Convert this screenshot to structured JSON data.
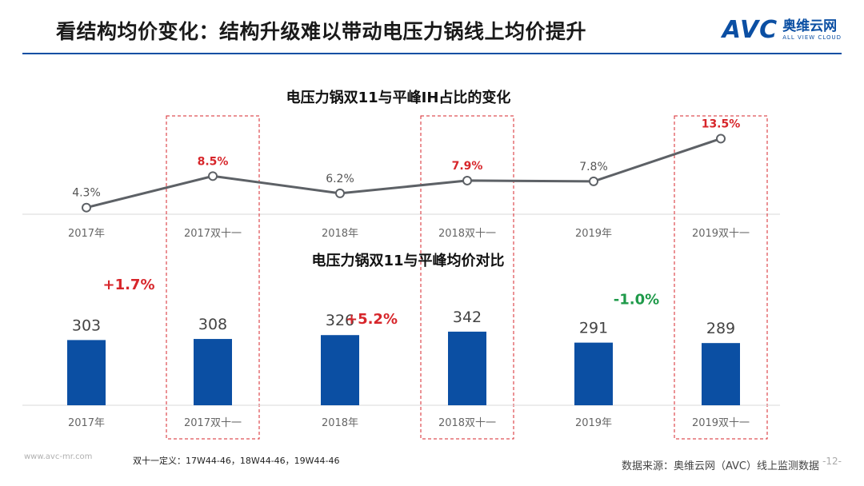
{
  "page": {
    "title": "看结构均价变化：结构升级难以带动电压力锅线上均价提升",
    "brand_mark": "AVC",
    "brand_cn": "奥维云网",
    "brand_en": "ALL VIEW CLOUD",
    "footer_url": "www.avc-mr.com",
    "footnote": "双十一定义：17W44-46，18W44-46，19W44-46",
    "source": "数据来源：奥维云网（AVC）线上监测数据",
    "page_number": "-12-"
  },
  "colors": {
    "title_rule": "#0b4fa3",
    "bar": "#0b4fa3",
    "line": "#5d6166",
    "highlight_red": "#d7262b",
    "highlight_green": "#1f9a4a",
    "label_gray": "#555555"
  },
  "chart_data": [
    {
      "type": "line",
      "title": "电压力锅双11与平峰IH占比的变化",
      "categories": [
        "2017年",
        "2017双十一",
        "2018年",
        "2018双十一",
        "2019年",
        "2019双十一"
      ],
      "values": [
        4.3,
        8.5,
        6.2,
        7.9,
        7.8,
        13.5
      ],
      "value_labels": [
        "4.3%",
        "8.5%",
        "6.2%",
        "7.9%",
        "7.8%",
        "13.5%"
      ],
      "highlighted": [
        false,
        true,
        false,
        true,
        false,
        true
      ],
      "unit": "%",
      "ylim": [
        0,
        16
      ],
      "grid": false
    },
    {
      "type": "bar",
      "title": "电压力锅双11与平峰均价对比",
      "categories": [
        "2017年",
        "2017双十一",
        "2018年",
        "2018双十一",
        "2019年",
        "2019双十一"
      ],
      "values": [
        303,
        308,
        326,
        342,
        291,
        289
      ],
      "value_labels": [
        "303",
        "308",
        "326",
        "342",
        "291",
        "289"
      ],
      "ylim": [
        0,
        400
      ],
      "grid": false,
      "annotations": [
        {
          "text": "+1.7%",
          "between": [
            0,
            1
          ],
          "color": "red"
        },
        {
          "text": "+5.2%",
          "between": [
            2,
            3
          ],
          "color": "red"
        },
        {
          "text": "-1.0%",
          "between": [
            4,
            5
          ],
          "color": "green"
        }
      ]
    }
  ]
}
